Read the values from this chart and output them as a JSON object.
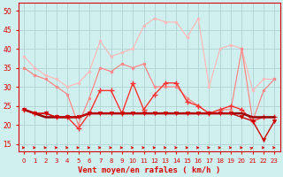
{
  "x": [
    0,
    1,
    2,
    3,
    4,
    5,
    6,
    7,
    8,
    9,
    10,
    11,
    12,
    13,
    14,
    15,
    16,
    17,
    18,
    19,
    20,
    21,
    22,
    23
  ],
  "background_color": "#cff0ee",
  "grid_color": "#aacccc",
  "xlabel": "Vent moyen/en rafales ( km/h )",
  "xlabel_color": "#dd0000",
  "yticks": [
    15,
    20,
    25,
    30,
    35,
    40,
    45,
    50
  ],
  "ylim": [
    13,
    52
  ],
  "xlim": [
    -0.5,
    23.5
  ],
  "line1_color": "#ffbbbb",
  "line2_color": "#ff8888",
  "line3_color": "#ff3333",
  "line4_color": "#cc0000",
  "line5_color": "#990000",
  "line1_values": [
    38,
    35,
    33,
    32,
    30,
    31,
    34,
    42,
    38,
    39,
    40,
    46,
    48,
    47,
    47,
    43,
    48,
    30,
    40,
    41,
    40,
    29,
    32,
    32
  ],
  "line2_values": [
    35,
    33,
    32,
    30,
    28,
    20,
    27,
    35,
    34,
    36,
    35,
    36,
    30,
    30,
    30,
    27,
    25,
    23,
    24,
    24,
    40,
    21,
    29,
    32
  ],
  "line3_values": [
    24,
    23,
    23,
    22,
    22,
    19,
    23,
    29,
    29,
    23,
    31,
    24,
    28,
    31,
    31,
    26,
    25,
    23,
    24,
    25,
    24,
    21,
    22,
    22
  ],
  "line4_values": [
    24,
    23,
    22,
    22,
    22,
    22,
    23,
    23,
    23,
    23,
    23,
    23,
    23,
    23,
    23,
    23,
    23,
    23,
    23,
    23,
    23,
    22,
    22,
    22
  ],
  "line5_values": [
    24,
    23,
    23,
    22,
    22,
    22,
    23,
    23,
    23,
    23,
    23,
    23,
    23,
    23,
    23,
    23,
    23,
    23,
    23,
    23,
    22,
    21,
    16,
    21
  ],
  "arrow_directions": [
    0,
    0,
    0,
    0,
    0,
    0,
    0,
    0,
    0,
    0,
    0,
    0,
    0,
    0,
    0,
    0,
    0,
    0,
    0,
    0,
    0,
    45,
    0,
    0
  ],
  "tick_color": "#dd0000",
  "spine_color": "#dd0000",
  "label_fontsize": 5.5,
  "xlabel_fontsize": 6.5
}
